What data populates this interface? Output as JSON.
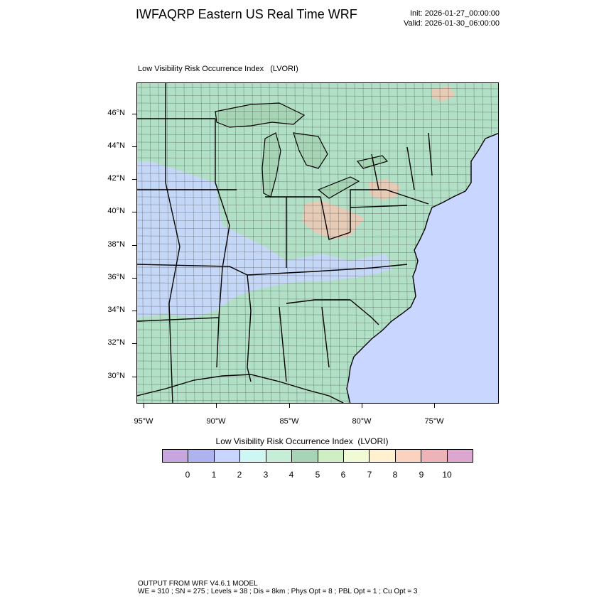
{
  "header": {
    "title": "IWFAQRP Eastern US Real Time WRF",
    "init": "Init: 2026-01-27_00:00:00",
    "valid": "Valid: 2026-01-30_06:00:00"
  },
  "plot": {
    "subtitle": "Low Visibility Risk Occurrence Index   (LVORI)",
    "lat_labels": [
      "46°N",
      "44°N",
      "42°N",
      "40°N",
      "38°N",
      "36°N",
      "34°N",
      "32°N",
      "30°N"
    ],
    "lon_labels": [
      "95°W",
      "90°W",
      "85°W",
      "80°W",
      "75°W"
    ],
    "colors": {
      "ocean": "#c9d6ff",
      "land_mid": "#b2e0c6",
      "land_high": "#a6d4b4",
      "land_low": "#c8d5ff",
      "land_warm": "#f2c5b3",
      "state_border": "#000000",
      "county_border": "#222222"
    }
  },
  "colorbar": {
    "title": "Low Visibility Risk Occurrence Index  (LVORI)",
    "labels": [
      "0",
      "1",
      "2",
      "3",
      "4",
      "5",
      "6",
      "7",
      "8",
      "9",
      "10"
    ],
    "colors": [
      "#c7a6e0",
      "#aeb3ef",
      "#c8d5ff",
      "#cef7f3",
      "#c5edd8",
      "#a6d4b4",
      "#cfeec4",
      "#f0fbd6",
      "#fff0cf",
      "#fbd2c0",
      "#eeb3b6",
      "#dca6cf"
    ]
  },
  "footer": {
    "line1": "OUTPUT FROM WRF V4.6.1 MODEL",
    "line2": "WE = 310 ; SN = 275 ; Levels = 38 ; Dis = 8km ; Phys Opt = 8 ; PBL Opt = 1 ; Cu Opt = 3"
  }
}
